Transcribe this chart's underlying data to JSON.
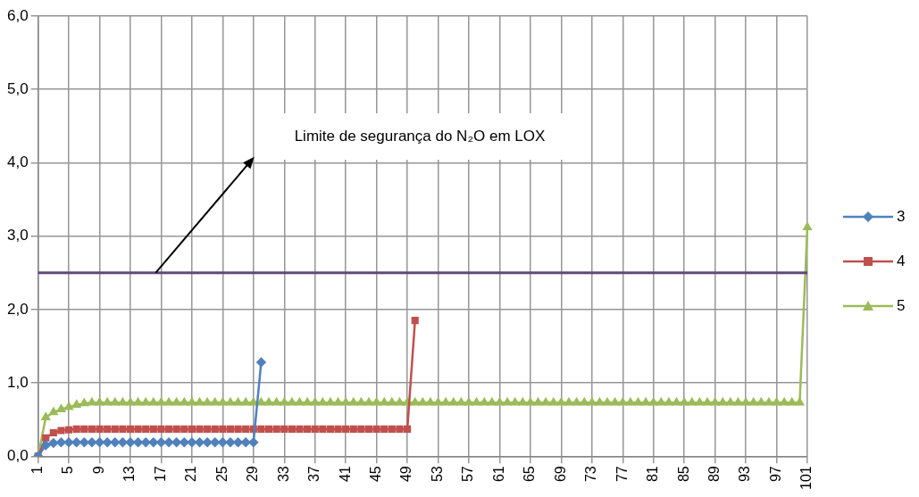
{
  "chart_data": {
    "type": "line",
    "categories": [
      "1",
      null,
      null,
      null,
      "5",
      null,
      null,
      null,
      "9",
      null,
      null,
      null,
      "13",
      null,
      null,
      null,
      "17",
      null,
      null,
      null,
      "21",
      null,
      null,
      null,
      "25",
      null,
      null,
      null,
      "29",
      null,
      null,
      null,
      "33",
      null,
      null,
      null,
      "37",
      null,
      null,
      null,
      "41",
      null,
      null,
      null,
      "45",
      null,
      null,
      null,
      "49",
      null,
      null,
      null,
      "53",
      null,
      null,
      null,
      "57",
      null,
      null,
      null,
      "61",
      null,
      null,
      null,
      "65",
      null,
      null,
      null,
      "69",
      null,
      null,
      null,
      "73",
      null,
      null,
      null,
      "77",
      null,
      null,
      null,
      "81",
      null,
      null,
      null,
      "85",
      null,
      null,
      null,
      "89",
      null,
      null,
      null,
      "93",
      null,
      null,
      null,
      "97",
      null,
      null,
      null,
      "101"
    ],
    "series": [
      {
        "name": "3",
        "color": "#4f81bd",
        "marker": "diamond",
        "values": [
          0,
          0.15,
          0.18,
          0.19,
          0.19,
          0.19,
          0.19,
          0.19,
          0.19,
          0.19,
          0.19,
          0.19,
          0.19,
          0.19,
          0.19,
          0.19,
          0.19,
          0.19,
          0.19,
          0.19,
          0.19,
          0.19,
          0.19,
          0.19,
          0.19,
          0.19,
          0.19,
          0.19,
          0.19,
          1.28,
          null,
          null,
          null,
          null,
          null,
          null,
          null,
          null,
          null,
          null,
          null,
          null,
          null,
          null,
          null,
          null,
          null,
          null,
          null,
          null,
          null,
          null,
          null,
          null,
          null,
          null,
          null,
          null,
          null,
          null,
          null,
          null,
          null,
          null,
          null,
          null,
          null,
          null,
          null,
          null,
          null,
          null,
          null,
          null,
          null,
          null,
          null,
          null,
          null,
          null,
          null,
          null,
          null,
          null,
          null,
          null,
          null,
          null,
          null,
          null,
          null,
          null,
          null,
          null,
          null,
          null,
          null,
          null,
          null,
          null,
          null
        ]
      },
      {
        "name": "4",
        "color": "#c0504d",
        "marker": "square",
        "values": [
          0,
          0.25,
          0.32,
          0.35,
          0.36,
          0.37,
          0.37,
          0.37,
          0.37,
          0.37,
          0.37,
          0.37,
          0.37,
          0.37,
          0.37,
          0.37,
          0.37,
          0.37,
          0.37,
          0.37,
          0.37,
          0.37,
          0.37,
          0.37,
          0.37,
          0.37,
          0.37,
          0.37,
          0.37,
          0.37,
          0.37,
          0.37,
          0.37,
          0.37,
          0.37,
          0.37,
          0.37,
          0.37,
          0.37,
          0.37,
          0.37,
          0.37,
          0.37,
          0.37,
          0.37,
          0.37,
          0.37,
          0.37,
          0.37,
          1.85,
          null,
          null,
          null,
          null,
          null,
          null,
          null,
          null,
          null,
          null,
          null,
          null,
          null,
          null,
          null,
          null,
          null,
          null,
          null,
          null,
          null,
          null,
          null,
          null,
          null,
          null,
          null,
          null,
          null,
          null,
          null,
          null,
          null,
          null,
          null,
          null,
          null,
          null,
          null,
          null,
          null,
          null,
          null,
          null,
          null,
          null,
          null,
          null,
          null,
          null,
          null
        ]
      },
      {
        "name": "5",
        "color": "#9bbb59",
        "marker": "triangle",
        "values": [
          0,
          0.53,
          0.6,
          0.64,
          0.67,
          0.7,
          0.72,
          0.73,
          0.73,
          0.73,
          0.73,
          0.73,
          0.73,
          0.73,
          0.73,
          0.73,
          0.73,
          0.73,
          0.73,
          0.73,
          0.73,
          0.73,
          0.73,
          0.73,
          0.73,
          0.73,
          0.73,
          0.73,
          0.73,
          0.73,
          0.73,
          0.73,
          0.73,
          0.73,
          0.73,
          0.73,
          0.73,
          0.73,
          0.73,
          0.73,
          0.73,
          0.73,
          0.73,
          0.73,
          0.73,
          0.73,
          0.73,
          0.73,
          0.73,
          0.73,
          0.73,
          0.73,
          0.73,
          0.73,
          0.73,
          0.73,
          0.73,
          0.73,
          0.73,
          0.73,
          0.73,
          0.73,
          0.73,
          0.73,
          0.73,
          0.73,
          0.73,
          0.73,
          0.73,
          0.73,
          0.73,
          0.73,
          0.73,
          0.73,
          0.73,
          0.73,
          0.73,
          0.73,
          0.73,
          0.73,
          0.73,
          0.73,
          0.73,
          0.73,
          0.73,
          0.73,
          0.73,
          0.73,
          0.73,
          0.73,
          0.73,
          0.73,
          0.73,
          0.73,
          0.73,
          0.73,
          0.73,
          0.73,
          0.73,
          0.73,
          3.12
        ]
      }
    ],
    "ylim": [
      0,
      6
    ],
    "yticks": [
      {
        "value": 0,
        "label": "0,0"
      },
      {
        "value": 1,
        "label": "1,0"
      },
      {
        "value": 2,
        "label": "2,0"
      },
      {
        "value": 3,
        "label": "3,0"
      },
      {
        "value": 4,
        "label": "4,0"
      },
      {
        "value": 5,
        "label": "5,0"
      },
      {
        "value": 6,
        "label": "6,0"
      }
    ],
    "ref_lines": [
      {
        "axis": "y",
        "value": 2.5,
        "color": "#604a7b"
      }
    ],
    "annotations": [
      "Limite de segurança do N₂O em LOX"
    ],
    "grid": true,
    "legend": "right",
    "line_style": "solid"
  }
}
